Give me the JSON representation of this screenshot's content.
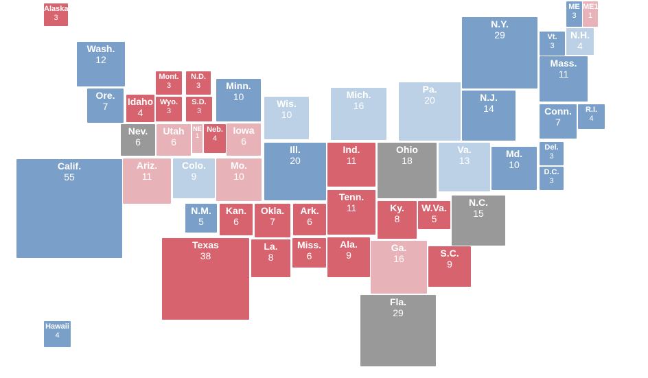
{
  "states": [
    {
      "label": "Alaska",
      "votes": 3,
      "color": "#d6636e"
    },
    {
      "label": "Hawaii",
      "votes": 4,
      "color": "#7aa0c9"
    },
    {
      "label": "Wash.",
      "votes": 12,
      "color": "#7aa0c9"
    },
    {
      "label": "Ore.",
      "votes": 7,
      "color": "#7aa0c9"
    },
    {
      "label": "Calif.",
      "votes": 55,
      "color": "#7aa0c9"
    },
    {
      "label": "Idaho",
      "votes": 4,
      "color": "#d6636e"
    },
    {
      "label": "Mont.",
      "votes": 3,
      "color": "#d6636e"
    },
    {
      "label": "N.D.",
      "votes": 3,
      "color": "#d6636e"
    },
    {
      "label": "Wyo.",
      "votes": 3,
      "color": "#d6636e"
    },
    {
      "label": "S.D.",
      "votes": 3,
      "color": "#d6636e"
    },
    {
      "label": "Minn.",
      "votes": 10,
      "color": "#7aa0c9"
    },
    {
      "label": "Nev.",
      "votes": 6,
      "color": "#999999"
    },
    {
      "label": "Utah",
      "votes": 6,
      "color": "#e8b3b8"
    },
    {
      "label": "NE",
      "votes": 1,
      "color": "#e8b3b8"
    },
    {
      "label": "Neb.",
      "votes": 4,
      "color": "#d6636e"
    },
    {
      "label": "Iowa",
      "votes": 6,
      "color": "#e8b3b8"
    },
    {
      "label": "Ariz.",
      "votes": 11,
      "color": "#e8b3b8"
    },
    {
      "label": "Colo.",
      "votes": 9,
      "color": "#bcd1e5"
    },
    {
      "label": "Mo.",
      "votes": 10,
      "color": "#e8b3b8"
    },
    {
      "label": "Wis.",
      "votes": 10,
      "color": "#bcd1e5"
    },
    {
      "label": "Ill.",
      "votes": 20,
      "color": "#7aa0c9"
    },
    {
      "label": "Mich.",
      "votes": 16,
      "color": "#bcd1e5"
    },
    {
      "label": "Pa.",
      "votes": 20,
      "color": "#bcd1e5"
    },
    {
      "label": "N.Y.",
      "votes": 29,
      "color": "#7aa0c9"
    },
    {
      "label": "Vt.",
      "votes": 3,
      "color": "#7aa0c9"
    },
    {
      "label": "N.H.",
      "votes": 4,
      "color": "#bcd1e5"
    },
    {
      "label": "ME",
      "votes": 3,
      "color": "#7aa0c9"
    },
    {
      "label": "ME1",
      "votes": 1,
      "color": "#e8b3b8"
    },
    {
      "label": "Mass.",
      "votes": 11,
      "color": "#7aa0c9"
    },
    {
      "label": "N.J.",
      "votes": 14,
      "color": "#7aa0c9"
    },
    {
      "label": "Conn.",
      "votes": 7,
      "color": "#7aa0c9"
    },
    {
      "label": "R.I.",
      "votes": 4,
      "color": "#7aa0c9"
    },
    {
      "label": "Ind.",
      "votes": 11,
      "color": "#d6636e"
    },
    {
      "label": "Ohio",
      "votes": 18,
      "color": "#999999"
    },
    {
      "label": "Va.",
      "votes": 13,
      "color": "#bcd1e5"
    },
    {
      "label": "Md.",
      "votes": 10,
      "color": "#7aa0c9"
    },
    {
      "label": "Del.",
      "votes": 3,
      "color": "#7aa0c9"
    },
    {
      "label": "D.C.",
      "votes": 3,
      "color": "#7aa0c9"
    },
    {
      "label": "N.M.",
      "votes": 5,
      "color": "#7aa0c9"
    },
    {
      "label": "Kan.",
      "votes": 6,
      "color": "#d6636e"
    },
    {
      "label": "Okla.",
      "votes": 7,
      "color": "#d6636e"
    },
    {
      "label": "Ark.",
      "votes": 6,
      "color": "#d6636e"
    },
    {
      "label": "Tenn.",
      "votes": 11,
      "color": "#d6636e"
    },
    {
      "label": "Ky.",
      "votes": 8,
      "color": "#d6636e"
    },
    {
      "label": "W.Va.",
      "votes": 5,
      "color": "#d6636e"
    },
    {
      "label": "N.C.",
      "votes": 15,
      "color": "#999999"
    },
    {
      "label": "Texas",
      "votes": 38,
      "color": "#d6636e"
    },
    {
      "label": "La.",
      "votes": 8,
      "color": "#d6636e"
    },
    {
      "label": "Miss.",
      "votes": 6,
      "color": "#d6636e"
    },
    {
      "label": "Ala.",
      "votes": 9,
      "color": "#d6636e"
    },
    {
      "label": "Ga.",
      "votes": 16,
      "color": "#e8b3b8"
    },
    {
      "label": "S.C.",
      "votes": 9,
      "color": "#d6636e"
    },
    {
      "label": "Fla.",
      "votes": 29,
      "color": "#999999"
    }
  ]
}
